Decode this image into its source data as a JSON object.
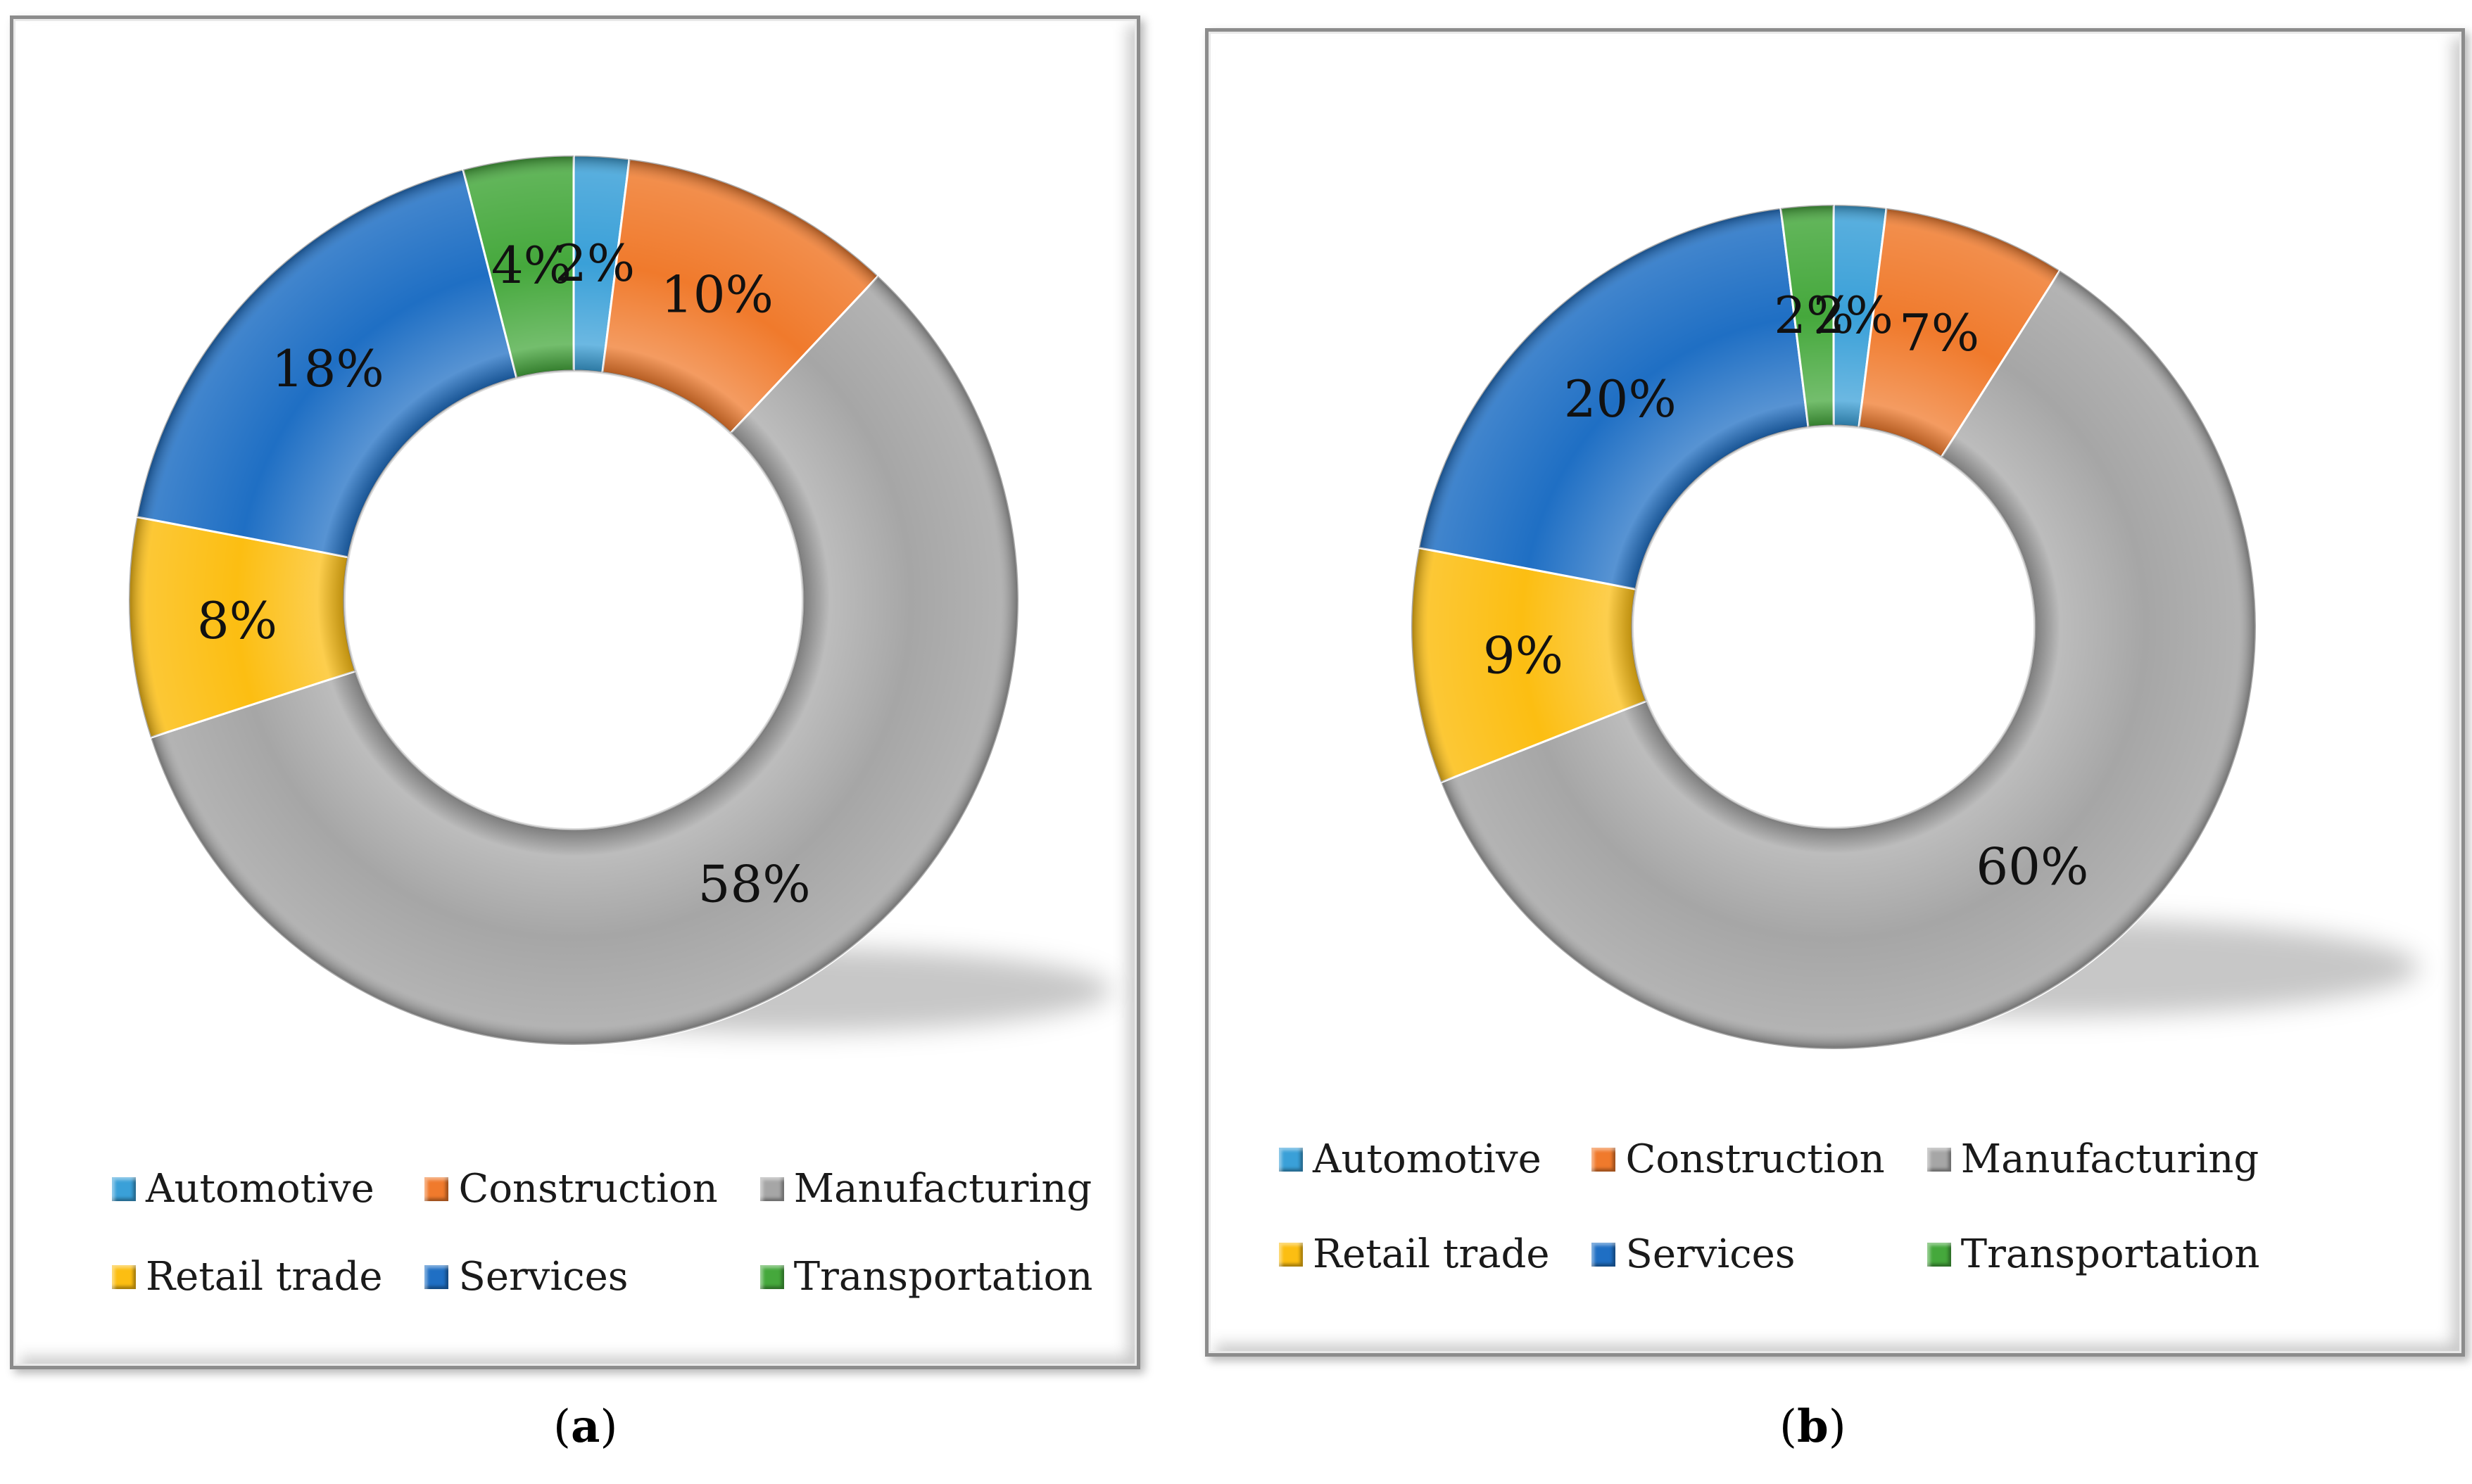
{
  "chart_data": [
    {
      "type": "pie",
      "subtype": "donut",
      "panel": "a",
      "caption_letter": "a",
      "categories": [
        "Automotive",
        "Construction",
        "Manufacturing",
        "Retail trade",
        "Services",
        "Transportation"
      ],
      "values": [
        2,
        10,
        58,
        8,
        18,
        4
      ],
      "labels": [
        "2%",
        "10%",
        "58%",
        "8%",
        "18%",
        "4%"
      ],
      "legend_position": "bottom"
    },
    {
      "type": "pie",
      "subtype": "donut",
      "panel": "b",
      "caption_letter": "b",
      "categories": [
        "Automotive",
        "Construction",
        "Manufacturing",
        "Retail trade",
        "Services",
        "Transportation"
      ],
      "values": [
        2,
        7,
        60,
        9,
        20,
        2
      ],
      "labels": [
        "2%",
        "7%",
        "60%",
        "9%",
        "20%",
        "2%"
      ],
      "legend_position": "bottom"
    }
  ],
  "colors": {
    "Automotive": "#3aa0d8",
    "Construction": "#f07a2c",
    "Manufacturing": "#a6a6a6",
    "Retail trade": "#fcbe12",
    "Services": "#1f6fc4",
    "Transportation": "#45a83c"
  },
  "captions": {
    "a": {
      "open": "(",
      "letter": "a",
      "close": ")"
    },
    "b": {
      "open": "(",
      "letter": "b",
      "close": ")"
    }
  }
}
